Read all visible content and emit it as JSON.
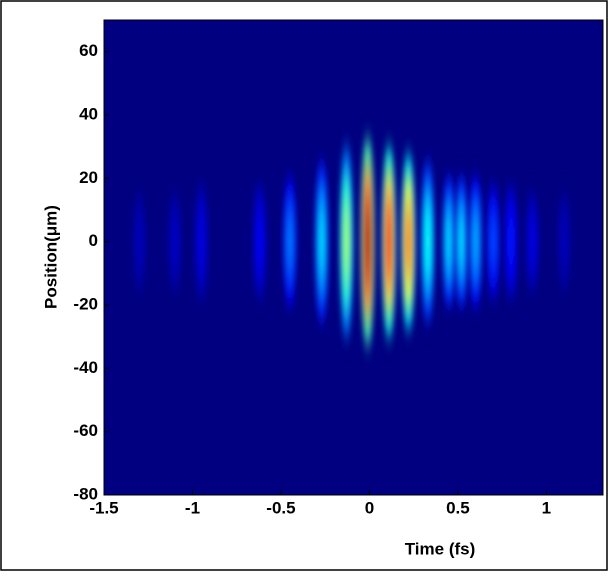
{
  "chart_data": {
    "type": "heatmap",
    "xlabel": "Time (fs)",
    "ylabel": "Position(μm)",
    "xlim": [
      -1.5,
      1.32
    ],
    "ylim": [
      -80,
      70
    ],
    "xticks": [
      -1.5,
      -1,
      -0.5,
      0,
      0.5,
      1
    ],
    "yticks": [
      -80,
      -60,
      -40,
      -20,
      0,
      20,
      40,
      60
    ],
    "colormap": "jet",
    "clim": [
      0,
      1
    ],
    "fringes": {
      "x": [
        -1.3,
        -1.1,
        -0.95,
        -0.62,
        -0.45,
        -0.27,
        -0.13,
        -0.01,
        0.11,
        0.22,
        0.33,
        0.45,
        0.52,
        0.6,
        0.7,
        0.8,
        0.92,
        1.1
      ],
      "y": [
        0,
        0,
        0,
        0,
        0,
        0,
        0,
        0,
        0,
        0,
        0,
        0,
        0,
        0,
        0,
        0,
        0,
        0
      ],
      "intensity": [
        0.06,
        0.07,
        0.1,
        0.12,
        0.25,
        0.35,
        0.55,
        1.0,
        0.9,
        0.8,
        0.4,
        0.35,
        0.35,
        0.3,
        0.2,
        0.15,
        0.1,
        0.06
      ],
      "half_height": [
        14,
        14,
        16,
        16,
        18,
        22,
        26,
        28,
        26,
        24,
        22,
        18,
        18,
        18,
        16,
        16,
        14,
        14
      ]
    }
  }
}
